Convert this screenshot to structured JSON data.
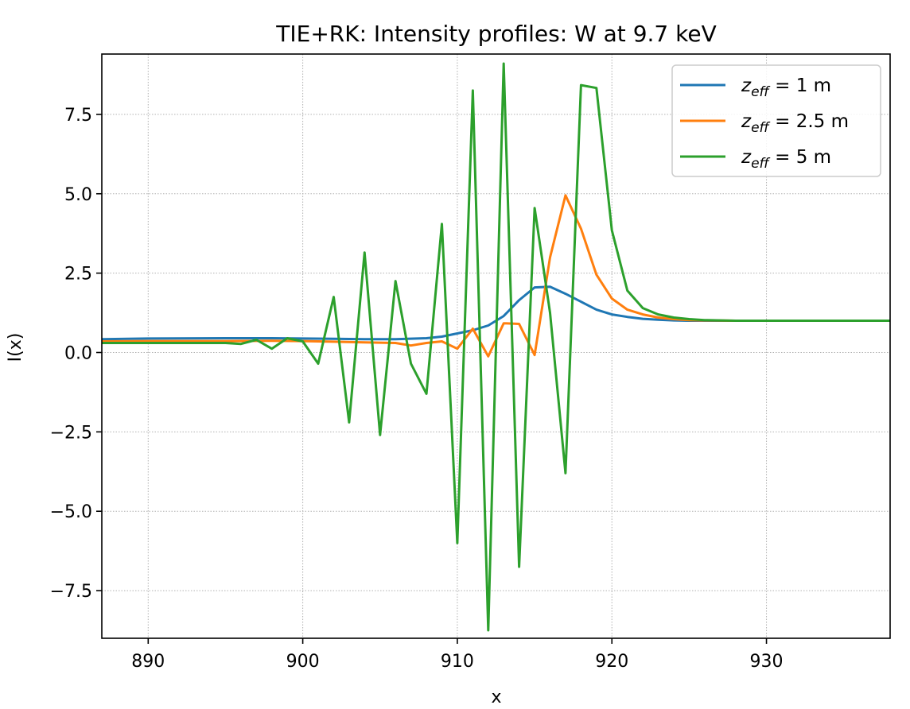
{
  "chart_data": {
    "type": "line",
    "title": "TIE+RK: Intensity profiles: W at 9.7 keV",
    "xlabel": "x",
    "ylabel": "I(x)",
    "xlim": [
      887,
      938
    ],
    "ylim": [
      -9.0,
      9.4
    ],
    "xticks": [
      890,
      900,
      910,
      920,
      930
    ],
    "yticks": [
      -7.5,
      -5.0,
      -2.5,
      0.0,
      2.5,
      5.0,
      7.5
    ],
    "xtick_labels": [
      "890",
      "900",
      "910",
      "920",
      "930"
    ],
    "ytick_labels": [
      "−7.5",
      "−5.0",
      "−2.5",
      "0.0",
      "2.5",
      "5.0",
      "7.5"
    ],
    "grid": true,
    "legend_position": "top-right",
    "series": [
      {
        "label_base": "z",
        "label_sub": "eff",
        "label_rest": " = 1 m",
        "color": "#1f77b4",
        "x": [
          887,
          890,
          895,
          898,
          900,
          902,
          904,
          906,
          908,
          909,
          910,
          911,
          912,
          913,
          914,
          915,
          916,
          917,
          918,
          919,
          920,
          921,
          922,
          923,
          924,
          925,
          926,
          928,
          930,
          935,
          938
        ],
        "y": [
          0.42,
          0.44,
          0.45,
          0.45,
          0.44,
          0.43,
          0.42,
          0.42,
          0.45,
          0.5,
          0.6,
          0.7,
          0.85,
          1.15,
          1.65,
          2.05,
          2.07,
          1.85,
          1.6,
          1.35,
          1.2,
          1.12,
          1.06,
          1.03,
          1.01,
          1.0,
          1.0,
          1.0,
          1.0,
          1.0,
          1.0
        ]
      },
      {
        "label_base": "z",
        "label_sub": "eff",
        "label_rest": " = 2.5 m",
        "color": "#ff7f0e",
        "x": [
          887,
          890,
          895,
          898,
          900,
          902,
          904,
          906,
          907,
          908,
          909,
          910,
          911,
          912,
          913,
          914,
          915,
          916,
          917,
          918,
          919,
          920,
          921,
          922,
          923,
          924,
          925,
          926,
          928,
          930,
          935,
          938
        ],
        "y": [
          0.35,
          0.36,
          0.36,
          0.37,
          0.36,
          0.34,
          0.32,
          0.3,
          0.22,
          0.3,
          0.35,
          0.12,
          0.75,
          -0.12,
          0.92,
          0.9,
          -0.08,
          3.0,
          4.95,
          3.9,
          2.45,
          1.7,
          1.35,
          1.2,
          1.1,
          1.05,
          1.02,
          1.01,
          1.0,
          1.0,
          1.0,
          1.0
        ]
      },
      {
        "label_base": "z",
        "label_sub": "eff",
        "label_rest": " = 5 m",
        "color": "#2ca02c",
        "x": [
          887,
          890,
          895,
          896,
          897,
          898,
          899,
          900,
          901,
          902,
          903,
          904,
          905,
          906,
          907,
          908,
          909,
          910,
          911,
          912,
          913,
          914,
          915,
          916,
          917,
          918,
          919,
          920,
          921,
          922,
          923,
          924,
          925,
          926,
          928,
          930,
          935,
          938
        ],
        "y": [
          0.3,
          0.3,
          0.3,
          0.27,
          0.4,
          0.12,
          0.45,
          0.35,
          -0.35,
          1.75,
          -2.2,
          3.15,
          -2.6,
          2.25,
          -0.35,
          -1.3,
          4.05,
          -6.0,
          8.25,
          -8.75,
          9.1,
          -6.75,
          4.55,
          1.25,
          -3.8,
          8.42,
          8.33,
          3.85,
          1.95,
          1.4,
          1.2,
          1.1,
          1.05,
          1.02,
          1.0,
          1.0,
          1.0,
          1.0
        ]
      }
    ]
  }
}
